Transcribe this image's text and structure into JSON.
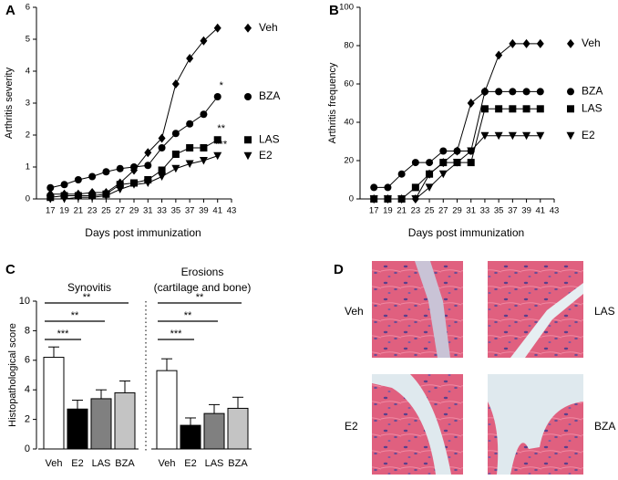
{
  "chart_data": [
    {
      "type": "line",
      "panel": "A",
      "ylabel": "Arthritis severity",
      "xlabel": "Days post immunization",
      "x": [
        17,
        19,
        21,
        23,
        25,
        27,
        29,
        31,
        33,
        35,
        37,
        39,
        41
      ],
      "xlim": [
        15,
        43
      ],
      "xticks": [
        17,
        19,
        21,
        23,
        25,
        27,
        29,
        31,
        33,
        35,
        37,
        39,
        41,
        43
      ],
      "ylim": [
        0,
        6
      ],
      "yticks": [
        0,
        1,
        2,
        3,
        4,
        5,
        6
      ],
      "series": [
        {
          "name": "Veh",
          "marker": "diamond",
          "color": "#000000",
          "values": [
            0.15,
            0.15,
            0.15,
            0.2,
            0.2,
            0.5,
            0.9,
            1.45,
            1.9,
            3.6,
            4.4,
            4.95,
            5.35
          ]
        },
        {
          "name": "BZA",
          "marker": "circle",
          "color": "#000000",
          "annotation": "*",
          "values": [
            0.35,
            0.45,
            0.6,
            0.7,
            0.85,
            0.95,
            1.0,
            1.05,
            1.6,
            2.05,
            2.35,
            2.65,
            3.2
          ]
        },
        {
          "name": "LAS",
          "marker": "square",
          "color": "#000000",
          "annotation": "**",
          "values": [
            0.05,
            0.1,
            0.1,
            0.1,
            0.15,
            0.45,
            0.5,
            0.6,
            0.9,
            1.4,
            1.6,
            1.6,
            1.85
          ]
        },
        {
          "name": "E2",
          "marker": "triangle",
          "color": "#000000",
          "annotation": "***",
          "values": [
            0,
            0,
            0.05,
            0.05,
            0.1,
            0.3,
            0.45,
            0.5,
            0.7,
            0.95,
            1.1,
            1.2,
            1.35
          ]
        }
      ]
    },
    {
      "type": "line",
      "panel": "B",
      "ylabel": "Arthritis frequency",
      "xlabel": "Days post immunization",
      "x": [
        17,
        19,
        21,
        23,
        25,
        27,
        29,
        31,
        33,
        35,
        37,
        39,
        41
      ],
      "xlim": [
        15,
        43
      ],
      "xticks": [
        17,
        19,
        21,
        23,
        25,
        27,
        29,
        31,
        33,
        35,
        37,
        39,
        41,
        43
      ],
      "ylim": [
        0,
        100
      ],
      "yticks": [
        0,
        20,
        40,
        60,
        80,
        100
      ],
      "series": [
        {
          "name": "Veh",
          "marker": "diamond",
          "color": "#000000",
          "values": [
            0,
            0,
            0,
            0,
            13,
            19,
            25,
            50,
            56,
            75,
            81,
            81,
            81
          ]
        },
        {
          "name": "BZA",
          "marker": "circle",
          "color": "#000000",
          "values": [
            6,
            6,
            13,
            19,
            19,
            25,
            25,
            25,
            56,
            56,
            56,
            56,
            56
          ]
        },
        {
          "name": "LAS",
          "marker": "square",
          "color": "#000000",
          "values": [
            0,
            0,
            0,
            6,
            13,
            19,
            19,
            19,
            47,
            47,
            47,
            47,
            47
          ]
        },
        {
          "name": "E2",
          "marker": "triangle",
          "color": "#000000",
          "values": [
            0,
            0,
            0,
            0,
            6,
            13,
            19,
            25,
            33,
            33,
            33,
            33,
            33
          ]
        }
      ]
    },
    {
      "type": "bar",
      "panel": "C",
      "ylabel": "Histopathological score",
      "ylim": [
        0,
        10
      ],
      "yticks": [
        0,
        2,
        4,
        6,
        8,
        10
      ],
      "colors": [
        "#ffffff",
        "#000000",
        "#808080",
        "#c4c4c4"
      ],
      "groups": [
        {
          "title": [
            "Synovitis"
          ],
          "categories": [
            "Veh",
            "E2",
            "LAS",
            "BZA"
          ],
          "values": [
            6.2,
            2.7,
            3.4,
            3.8
          ],
          "errors": [
            0.7,
            0.6,
            0.6,
            0.8
          ],
          "brackets": [
            {
              "label": "***",
              "between": [
                "Veh",
                "E2"
              ]
            },
            {
              "label": "**",
              "between": [
                "Veh",
                "LAS"
              ]
            },
            {
              "label": "**",
              "between": [
                "Veh",
                "BZA"
              ]
            }
          ]
        },
        {
          "title": [
            "Erosions",
            "(cartilage and bone)"
          ],
          "categories": [
            "Veh",
            "E2",
            "LAS",
            "BZA"
          ],
          "values": [
            5.3,
            1.6,
            2.4,
            2.75
          ],
          "errors": [
            0.8,
            0.5,
            0.6,
            0.75
          ],
          "brackets": [
            {
              "label": "***",
              "between": [
                "Veh",
                "E2"
              ]
            },
            {
              "label": "**",
              "between": [
                "Veh",
                "LAS"
              ]
            },
            {
              "label": "**",
              "between": [
                "Veh",
                "BZA"
              ]
            }
          ]
        }
      ]
    }
  ],
  "image_panel": {
    "panel": "D",
    "images": [
      {
        "label": "Veh"
      },
      {
        "label": "LAS"
      },
      {
        "label": "E2"
      },
      {
        "label": "BZA"
      }
    ]
  }
}
